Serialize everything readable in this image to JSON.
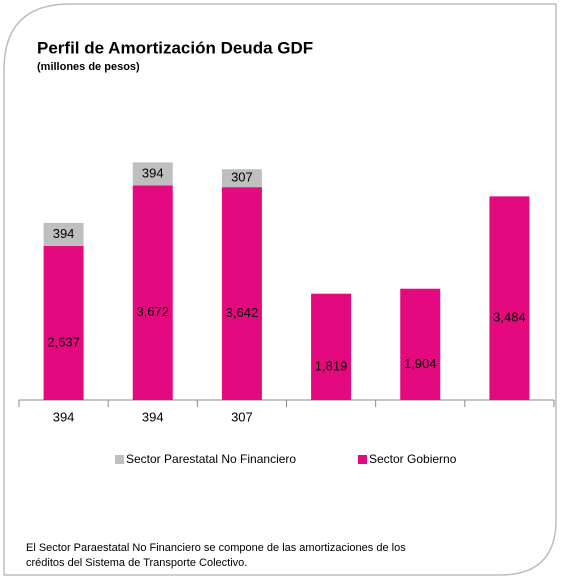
{
  "chart_data": {
    "type": "stacked_bar",
    "title": "Perfil de Amortización  Deuda GDF",
    "subtitle": "(millones de pesos)",
    "categories": [
      "394",
      "394",
      "307",
      null,
      null,
      null
    ],
    "series": [
      {
        "name": "Sector Parestatal No Financiero",
        "color": "#bfbfbf",
        "values": [
          394,
          394,
          307,
          null,
          null,
          null
        ]
      },
      {
        "name": "Sector Gobierno",
        "color": "#e5097f",
        "values": [
          2637,
          3672,
          3642,
          1819,
          1904,
          3484
        ],
        "value_labels": [
          "2,637",
          "3,672",
          "3,642",
          "1,819",
          "1,904",
          "3,484"
        ]
      }
    ],
    "ylim": [
      0,
      4500
    ],
    "legend": "bottom",
    "annotation": [
      "El Sector Paraestatal No Financiero se compone de las amortizaciones de los",
      "créditos del Sistema de Transporte Colectivo."
    ]
  }
}
